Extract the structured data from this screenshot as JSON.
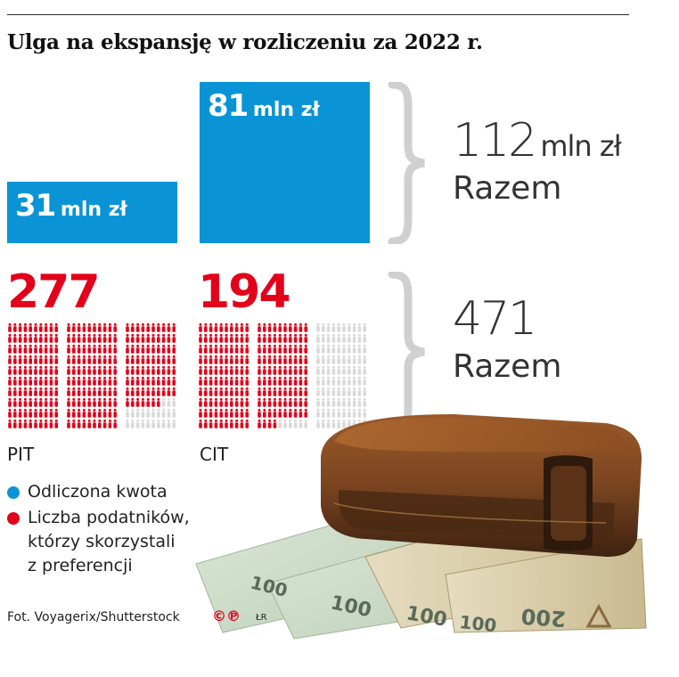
{
  "title": "Ulga na ekspansję w rozliczeniu za 2022 r.",
  "chart_data": [
    {
      "type": "bar",
      "categories": [
        "PIT",
        "CIT"
      ],
      "series": [
        {
          "name": "Odliczona kwota",
          "values": [
            31,
            81
          ]
        }
      ],
      "labels": [
        {
          "num": "31",
          "unit": "mln zł"
        },
        {
          "num": "81",
          "unit": "mln zł"
        }
      ],
      "total": {
        "num": "112",
        "unit": "mln zł",
        "caption": "Razem"
      },
      "color": "#0a94d6"
    },
    {
      "type": "pictogram",
      "categories": [
        "PIT",
        "CIT"
      ],
      "series": [
        {
          "name": "Liczba podatników, którzy skorzystali z preferencji",
          "values": [
            277,
            194
          ]
        }
      ],
      "labels": [
        "277",
        "194"
      ],
      "total": {
        "num": "471",
        "caption": "Razem"
      },
      "color": "#e2001a",
      "inactive_color": "#d9d9d9"
    }
  ],
  "categories": {
    "pit": "PIT",
    "cit": "CIT"
  },
  "legend": [
    {
      "label": "Odliczona kwota",
      "color": "#0a94d6"
    },
    {
      "label_lines": [
        "Liczba podatników,",
        "którzy skorzystali",
        "z preferencji"
      ],
      "color": "#e2001a"
    }
  ],
  "credit": "Fot. Voyagerix/Shutterstock",
  "copyright_mark": "©℗",
  "author": "ŁR",
  "photo": {
    "icon": "wallet-with-banknotes-photo",
    "banknote_texts": [
      "100",
      "100",
      "100",
      "100",
      "200"
    ]
  }
}
